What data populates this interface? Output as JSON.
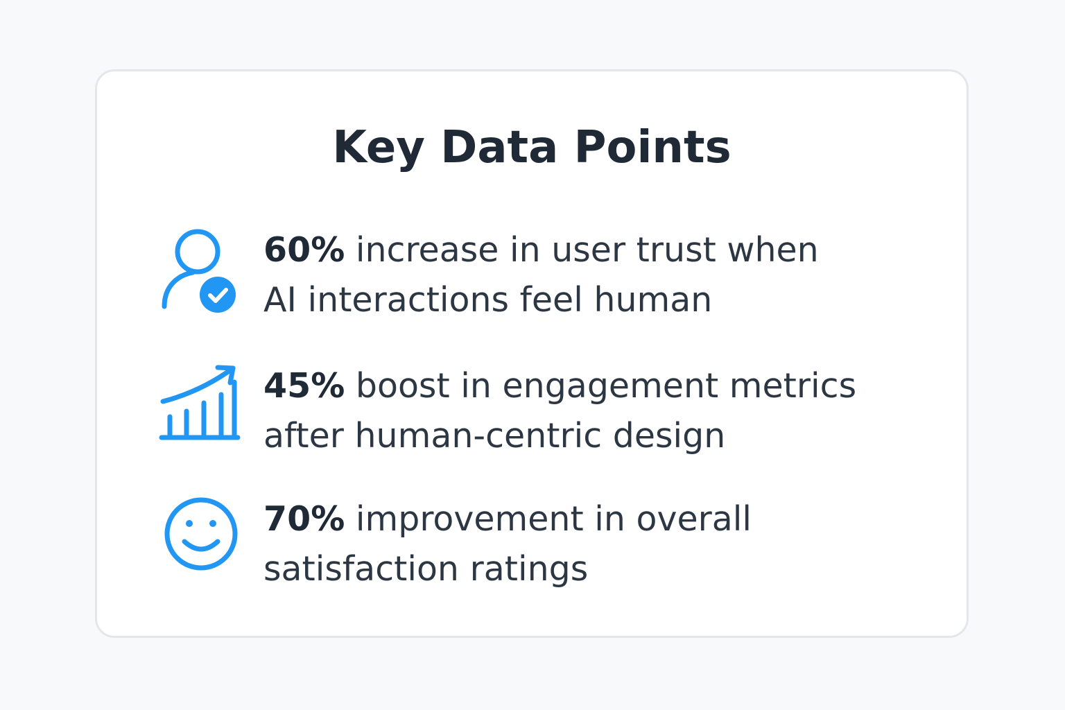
{
  "card": {
    "title": "Key Data Points",
    "items": [
      {
        "stat": "60%",
        "text_line1": " increase in user trust when",
        "text_line2": "AI interactions feel human",
        "icon": "user-check-icon"
      },
      {
        "stat": "45%",
        "text_line1": " boost in engagement metrics",
        "text_line2": "after human-centric design",
        "icon": "growth-chart-icon"
      },
      {
        "stat": "70%",
        "text_line1": " improvement in overall",
        "text_line2": "satisfaction ratings",
        "icon": "smiley-face-icon"
      }
    ]
  },
  "colors": {
    "accent": "#2196f3",
    "title": "#1f2a36",
    "body_text": "#2d3744",
    "card_border": "#e4e7ea",
    "background": "#f8f9fa"
  }
}
